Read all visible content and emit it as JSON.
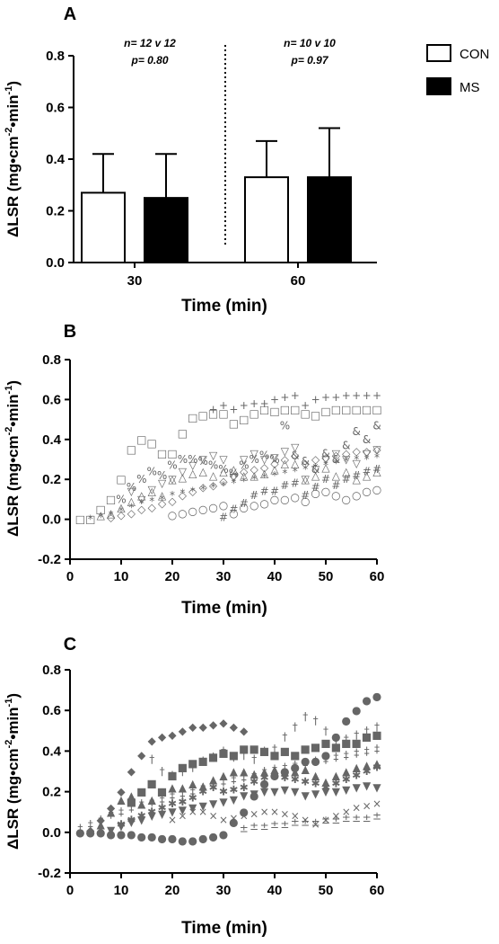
{
  "chart_data": [
    {
      "panel": "A",
      "type": "bar",
      "categories": [
        "30",
        "60"
      ],
      "xlabel": "Time (min)",
      "ylabel": "ΔLSR (mg•cm-2•min-1)",
      "ylim": [
        0,
        0.8
      ],
      "yticks": [
        "0.0",
        "0.2",
        "0.4",
        "0.6",
        "0.8"
      ],
      "series": [
        {
          "name": "CON",
          "values": [
            0.27,
            0.33
          ],
          "sd": [
            0.15,
            0.14
          ],
          "color": "#ffffff"
        },
        {
          "name": "MS",
          "values": [
            0.25,
            0.33
          ],
          "sd": [
            0.17,
            0.19
          ],
          "color": "#000000"
        }
      ],
      "annotations": [
        {
          "line1": "n= 12 v 12",
          "line2": "p= 0.80"
        },
        {
          "line1": "n= 10 v 10",
          "line2": "p= 0.97"
        }
      ],
      "legend_position": "top-right",
      "grid": false
    },
    {
      "panel": "B",
      "type": "scatter",
      "xlabel": "Time (min)",
      "ylabel": "ΔLSR (mg•cm-2•min-1)",
      "xlim": [
        0,
        60
      ],
      "ylim": [
        -0.2,
        0.8
      ],
      "xticks": [
        "0",
        "10",
        "20",
        "30",
        "40",
        "50",
        "60"
      ],
      "yticks": [
        "-0.2",
        "0.0",
        "0.2",
        "0.4",
        "0.6",
        "0.8"
      ],
      "grid": false,
      "series": [
        {
          "marker": "□",
          "x": [
            2,
            4,
            6,
            8,
            10,
            12,
            14,
            16,
            18,
            20,
            22,
            24,
            26,
            28,
            30,
            32,
            34,
            36,
            38,
            40,
            42,
            44,
            46,
            48,
            50,
            52,
            54,
            56,
            58,
            60
          ],
          "y": [
            0,
            0,
            0.05,
            0.1,
            0.2,
            0.35,
            0.4,
            0.38,
            0.33,
            0.33,
            0.43,
            0.51,
            0.52,
            0.53,
            0.53,
            0.48,
            0.5,
            0.53,
            0.55,
            0.54,
            0.55,
            0.55,
            0.53,
            0.52,
            0.54,
            0.55,
            0.55,
            0.55,
            0.55,
            0.55
          ]
        },
        {
          "marker": "+",
          "x": [
            28,
            30,
            32,
            34,
            36,
            38,
            40,
            42,
            44,
            46,
            48,
            50,
            52,
            54,
            56,
            58,
            60
          ],
          "y": [
            0.55,
            0.57,
            0.55,
            0.57,
            0.58,
            0.58,
            0.6,
            0.61,
            0.62,
            0.57,
            0.6,
            0.61,
            0.61,
            0.62,
            0.62,
            0.62,
            0.62
          ]
        },
        {
          "marker": "%",
          "x": [
            10,
            12,
            14,
            16,
            18,
            20,
            22,
            24,
            26,
            28,
            30,
            32,
            34,
            36,
            38,
            40,
            42
          ],
          "y": [
            0.1,
            0.16,
            0.2,
            0.24,
            0.22,
            0.27,
            0.3,
            0.3,
            0.29,
            0.27,
            0.25,
            0.23,
            0.27,
            0.3,
            0.32,
            0.3,
            0.47
          ]
        },
        {
          "marker": "&",
          "x": [
            44,
            46,
            48,
            50,
            52,
            54,
            56,
            58,
            60
          ],
          "y": [
            0.32,
            0.29,
            0.25,
            0.33,
            0.3,
            0.37,
            0.44,
            0.4,
            0.47
          ]
        },
        {
          "marker": "○",
          "x": [
            20,
            22,
            24,
            26,
            28,
            30,
            32,
            34,
            36,
            38,
            40,
            42,
            44,
            46,
            48,
            50,
            52,
            54,
            56,
            58,
            60
          ],
          "y": [
            0.02,
            0.03,
            0.04,
            0.05,
            0.06,
            0.07,
            0.03,
            0.06,
            0.07,
            0.08,
            0.1,
            0.1,
            0.11,
            0.09,
            0.13,
            0.14,
            0.12,
            0.1,
            0.12,
            0.14,
            0.15
          ]
        },
        {
          "marker": "◇",
          "x": [
            8,
            10,
            12,
            14,
            16,
            18,
            20,
            22,
            24,
            26,
            28,
            30,
            32,
            34,
            36,
            38,
            40,
            42,
            44,
            46,
            48,
            50,
            52,
            54,
            56,
            58,
            60
          ],
          "y": [
            0.01,
            0.02,
            0.03,
            0.05,
            0.06,
            0.08,
            0.09,
            0.12,
            0.14,
            0.16,
            0.17,
            0.19,
            0.22,
            0.24,
            0.25,
            0.26,
            0.28,
            0.3,
            0.32,
            0.28,
            0.3,
            0.31,
            0.32,
            0.33,
            0.34,
            0.34,
            0.35
          ]
        },
        {
          "marker": "▽",
          "x": [
            12,
            14,
            16,
            18,
            20,
            22,
            24,
            26,
            28,
            30,
            32,
            34,
            36,
            38,
            40,
            42,
            44,
            46,
            48,
            50,
            52,
            54,
            56,
            58,
            60
          ],
          "y": [
            0.14,
            0.1,
            0.15,
            0.18,
            0.2,
            0.24,
            0.27,
            0.3,
            0.32,
            0.3,
            0.21,
            0.3,
            0.33,
            0.3,
            0.31,
            0.34,
            0.36,
            0.2,
            0.25,
            0.3,
            0.33,
            0.3,
            0.28,
            0.33,
            0.35
          ]
        },
        {
          "marker": "△",
          "x": [
            6,
            8,
            10,
            12,
            14,
            16,
            18,
            20,
            22,
            24,
            26,
            28,
            30,
            32,
            34,
            36,
            38,
            40,
            42,
            44,
            46,
            48,
            50,
            52,
            54,
            56,
            58,
            60
          ],
          "y": [
            0.02,
            0.03,
            0.06,
            0.09,
            0.12,
            0.14,
            0.12,
            0.2,
            0.21,
            0.23,
            0.24,
            0.22,
            0.24,
            0.25,
            0.22,
            0.22,
            0.23,
            0.25,
            0.28,
            0.28,
            0.2,
            0.22,
            0.26,
            0.22,
            0.24,
            0.2,
            0.22,
            0.24
          ]
        },
        {
          "marker": "#",
          "x": [
            30,
            32,
            34,
            36,
            38,
            40,
            42,
            44,
            46,
            48,
            50,
            52,
            54,
            56,
            58,
            60
          ],
          "y": [
            0.01,
            0.05,
            0.08,
            0.12,
            0.14,
            0.14,
            0.17,
            0.18,
            0.12,
            0.16,
            0.2,
            0.17,
            0.2,
            0.22,
            0.24,
            0.25
          ]
        },
        {
          "marker": "*",
          "x": [
            4,
            6,
            8,
            10,
            12,
            14,
            16,
            18,
            20,
            22,
            24,
            26,
            28,
            30,
            32,
            34,
            36,
            38,
            40,
            42,
            44,
            46,
            48,
            50,
            52,
            54,
            56,
            58,
            60
          ],
          "y": [
            0,
            0.01,
            0.02,
            0.04,
            0.06,
            0.08,
            0.09,
            0.1,
            0.12,
            0.13,
            0.14,
            0.15,
            0.16,
            0.17,
            0.18,
            0.19,
            0.2,
            0.21,
            0.22,
            0.23,
            0.24,
            0.25,
            0.26,
            0.27,
            0.28,
            0.29,
            0.3,
            0.3,
            0.31
          ]
        }
      ]
    },
    {
      "panel": "C",
      "type": "scatter",
      "xlabel": "Time (min)",
      "ylabel": "ΔLSR (mg•cm-2•min-1)",
      "xlim": [
        0,
        60
      ],
      "ylim": [
        -0.2,
        0.8
      ],
      "xticks": [
        "0",
        "10",
        "20",
        "30",
        "40",
        "50",
        "60"
      ],
      "yticks": [
        "-0.2",
        "0.0",
        "0.2",
        "0.4",
        "0.6",
        "0.8"
      ],
      "grid": false,
      "series": [
        {
          "marker": "◆",
          "x": [
            2,
            4,
            6,
            8,
            10,
            12,
            14,
            16,
            18,
            20,
            22,
            24,
            26,
            28,
            30,
            32,
            34
          ],
          "y": [
            0,
            0.01,
            0.06,
            0.12,
            0.2,
            0.3,
            0.38,
            0.45,
            0.47,
            0.48,
            0.5,
            0.52,
            0.52,
            0.53,
            0.54,
            0.52,
            0.5
          ]
        },
        {
          "marker": "●",
          "x": [
            2,
            4,
            6,
            8,
            10,
            12,
            14,
            16,
            18,
            20,
            22,
            24,
            26,
            28,
            30,
            32,
            34,
            36,
            38,
            40,
            42,
            44,
            46,
            48,
            50,
            52,
            54,
            56,
            58,
            60
          ],
          "y": [
            0,
            0,
            0,
            -0.01,
            -0.01,
            -0.01,
            -0.02,
            -0.02,
            -0.03,
            -0.03,
            -0.04,
            -0.04,
            -0.03,
            -0.02,
            -0.01,
            0.05,
            0.1,
            0.18,
            0.24,
            0.28,
            0.3,
            0.32,
            0.35,
            0.35,
            0.38,
            0.47,
            0.55,
            0.6,
            0.65,
            0.67
          ]
        },
        {
          "marker": "■",
          "x": [
            12,
            14,
            16,
            18,
            20,
            22,
            24,
            26,
            28,
            30,
            32,
            34,
            36,
            38,
            40,
            42,
            44,
            46,
            48,
            50,
            52,
            54,
            56,
            58,
            60
          ],
          "y": [
            0.15,
            0.2,
            0.24,
            0.2,
            0.28,
            0.32,
            0.34,
            0.35,
            0.37,
            0.39,
            0.38,
            0.41,
            0.41,
            0.4,
            0.38,
            0.4,
            0.38,
            0.41,
            0.42,
            0.44,
            0.42,
            0.44,
            0.44,
            0.47,
            0.48
          ]
        },
        {
          "marker": "†",
          "x": [
            16,
            18,
            20,
            22,
            24,
            26,
            28,
            30,
            32,
            34,
            36,
            38,
            40,
            42,
            44,
            46,
            48,
            50,
            52,
            54,
            56,
            58,
            60
          ],
          "y": [
            0.36,
            0.3,
            0.28,
            0.3,
            0.32,
            0.35,
            0.37,
            0.4,
            0.37,
            0.38,
            0.36,
            0.4,
            0.41,
            0.47,
            0.52,
            0.57,
            0.55,
            0.5,
            0.45,
            0.46,
            0.48,
            0.5,
            0.52
          ]
        },
        {
          "marker": "‡",
          "x": [
            2,
            4,
            6,
            8,
            10,
            12,
            14,
            16,
            18,
            20,
            22,
            24,
            26,
            28,
            30,
            32,
            34,
            36,
            38,
            40,
            42,
            44,
            46,
            48,
            50,
            52,
            54,
            56,
            58,
            60
          ],
          "y": [
            0.02,
            0.04,
            0.06,
            0.09,
            0.1,
            0.12,
            0.14,
            0.15,
            0.16,
            0.18,
            0.19,
            0.2,
            0.22,
            0.24,
            0.25,
            0.26,
            0.27,
            0.28,
            0.3,
            0.31,
            0.32,
            0.33,
            0.34,
            0.35,
            0.36,
            0.37,
            0.38,
            0.39,
            0.4,
            0.41
          ]
        },
        {
          "marker": "▲",
          "x": [
            6,
            8,
            10,
            12,
            14,
            16,
            18,
            20,
            22,
            24,
            26,
            28,
            30,
            32,
            34,
            36,
            38,
            40,
            42,
            44,
            46,
            48,
            50,
            52,
            54,
            56,
            58,
            60
          ],
          "y": [
            0.04,
            0.1,
            0.16,
            0.18,
            0.14,
            0.16,
            0.2,
            0.22,
            0.22,
            0.24,
            0.23,
            0.26,
            0.28,
            0.3,
            0.3,
            0.29,
            0.3,
            0.31,
            0.3,
            0.3,
            0.31,
            0.28,
            0.25,
            0.28,
            0.3,
            0.32,
            0.33,
            0.34
          ]
        },
        {
          "marker": "✱",
          "x": [
            10,
            12,
            14,
            16,
            18,
            20,
            22,
            24,
            26,
            28,
            30,
            32,
            34,
            36,
            38,
            40,
            42,
            44,
            46,
            48,
            50,
            52,
            54,
            56,
            58,
            60
          ],
          "y": [
            0.04,
            0.06,
            0.08,
            0.1,
            0.12,
            0.14,
            0.15,
            0.17,
            0.2,
            0.22,
            0.2,
            0.21,
            0.22,
            0.25,
            0.27,
            0.28,
            0.27,
            0.26,
            0.25,
            0.24,
            0.22,
            0.24,
            0.26,
            0.28,
            0.3,
            0.32
          ]
        },
        {
          "marker": "▼",
          "x": [
            8,
            10,
            12,
            14,
            16,
            18,
            20,
            22,
            24,
            26,
            28,
            30,
            32,
            34,
            36,
            38,
            40,
            42,
            44,
            46,
            48,
            50,
            52,
            54,
            56,
            58,
            60
          ],
          "y": [
            0.01,
            0.03,
            0.05,
            0.06,
            0.08,
            0.09,
            0.1,
            0.11,
            0.12,
            0.13,
            0.14,
            0.15,
            0.16,
            0.18,
            0.19,
            0.2,
            0.2,
            0.21,
            0.2,
            0.18,
            0.19,
            0.2,
            0.2,
            0.21,
            0.22,
            0.23,
            0.22
          ]
        },
        {
          "marker": "×",
          "x": [
            20,
            22,
            24,
            26,
            28,
            30,
            32,
            34,
            36,
            38,
            40,
            42,
            44,
            46,
            48,
            50,
            52,
            54,
            56,
            58,
            60
          ],
          "y": [
            0.06,
            0.08,
            0.1,
            0.1,
            0.08,
            0.06,
            0.07,
            0.08,
            0.09,
            0.1,
            0.1,
            0.09,
            0.08,
            0.06,
            0.04,
            0.06,
            0.08,
            0.1,
            0.12,
            0.13,
            0.14
          ]
        },
        {
          "marker": "±",
          "x": [
            34,
            36,
            38,
            40,
            42,
            44,
            46,
            48,
            50,
            52,
            54,
            56,
            58,
            60
          ],
          "y": [
            0.02,
            0.03,
            0.03,
            0.04,
            0.04,
            0.05,
            0.05,
            0.05,
            0.06,
            0.06,
            0.07,
            0.07,
            0.07,
            0.08
          ]
        }
      ]
    }
  ]
}
